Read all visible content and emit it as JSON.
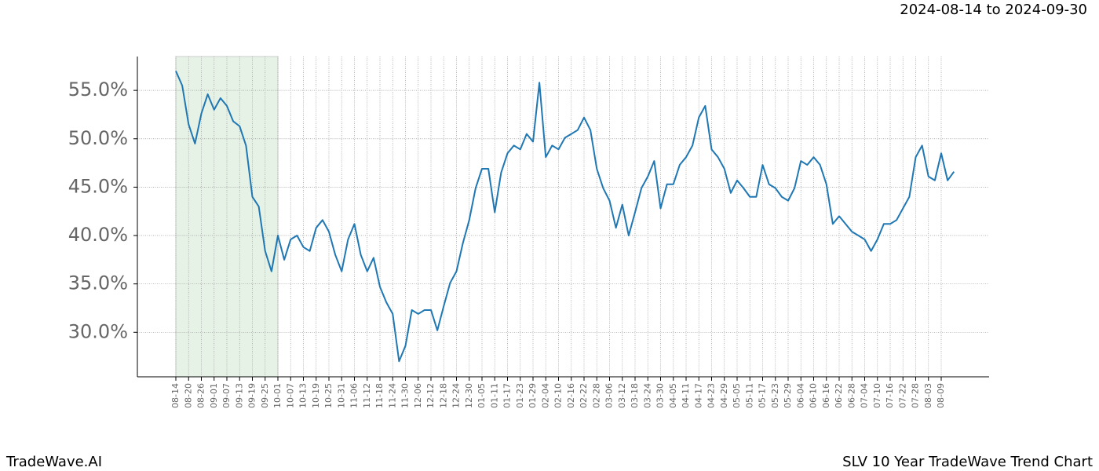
{
  "chart_data": {
    "type": "line",
    "title": "2024-08-14 to 2024-09-30",
    "footer_left": "TradeWave.AI",
    "footer_right": "SLV 10 Year TradeWave Trend Chart",
    "categories": [
      "08-14",
      null,
      "08-20",
      null,
      "08-26",
      null,
      "09-01",
      null,
      "09-07",
      null,
      "09-13",
      null,
      "09-19",
      null,
      "09-25",
      null,
      "10-01",
      null,
      "10-07",
      null,
      "10-13",
      null,
      "10-19",
      null,
      "10-25",
      null,
      "10-31",
      null,
      "11-06",
      null,
      "11-12",
      null,
      "11-18",
      null,
      "11-24",
      null,
      "11-30",
      null,
      "12-06",
      null,
      "12-12",
      null,
      "12-18",
      null,
      "12-24",
      null,
      "12-30",
      null,
      "01-05",
      null,
      "01-11",
      null,
      "01-17",
      null,
      "01-23",
      null,
      "01-29",
      null,
      "02-04",
      null,
      "02-10",
      null,
      "02-16",
      null,
      "02-22",
      null,
      "02-28",
      null,
      "03-06",
      null,
      "03-12",
      null,
      "03-18",
      null,
      "03-24",
      null,
      "03-30",
      null,
      "04-05",
      null,
      "04-11",
      null,
      "04-17",
      null,
      "04-23",
      null,
      "04-29",
      null,
      "05-05",
      null,
      "05-11",
      null,
      "05-17",
      null,
      "05-23",
      null,
      "05-29",
      null,
      "06-04",
      null,
      "06-10",
      null,
      "06-16",
      null,
      "06-22",
      null,
      "06-28",
      null,
      "07-04",
      null,
      "07-10",
      null,
      "07-16",
      null,
      "07-22",
      null,
      "07-28",
      null,
      "08-03",
      null,
      "08-09",
      null,
      null
    ],
    "values": [
      57.0,
      55.5,
      51.5,
      49.5,
      52.6,
      54.6,
      53.0,
      54.2,
      53.4,
      51.8,
      51.3,
      49.3,
      44.0,
      43.0,
      38.4,
      36.3,
      40.0,
      37.5,
      39.6,
      40.0,
      38.8,
      38.4,
      40.8,
      41.6,
      40.4,
      38.0,
      36.3,
      39.6,
      41.2,
      38.0,
      36.3,
      37.7,
      34.7,
      33.1,
      31.9,
      27.0,
      28.6,
      32.3,
      31.9,
      32.3,
      32.3,
      30.2,
      32.7,
      35.1,
      36.3,
      39.2,
      41.6,
      44.9,
      46.9,
      46.9,
      42.4,
      46.5,
      48.5,
      49.3,
      48.9,
      50.5,
      49.7,
      55.8,
      48.1,
      49.3,
      48.9,
      50.1,
      50.5,
      50.9,
      52.2,
      50.9,
      46.9,
      44.9,
      43.6,
      40.8,
      43.2,
      40.0,
      42.4,
      44.9,
      46.1,
      47.7,
      42.8,
      45.3,
      45.3,
      47.3,
      48.1,
      49.3,
      52.2,
      53.4,
      48.9,
      48.1,
      46.9,
      44.4,
      45.7,
      44.9,
      44.0,
      44.0,
      47.3,
      45.3,
      44.9,
      44.0,
      43.6,
      44.9,
      47.7,
      47.3,
      48.1,
      47.3,
      45.3,
      41.2,
      42.0,
      41.2,
      40.4,
      40.0,
      39.6,
      38.4,
      39.6,
      41.2,
      41.2,
      41.6,
      42.8,
      44.0,
      48.1,
      49.3,
      46.1,
      45.7,
      48.5,
      45.7,
      46.6
    ],
    "color": "#1f77b4",
    "highlight": {
      "start": "08-14",
      "end": "10-01",
      "color": "#e6f2e6"
    },
    "ylim": [
      25.4,
      58.5
    ],
    "yticks": [
      {
        "value": 30,
        "label": "30.0%"
      },
      {
        "value": 35,
        "label": "35.0%"
      },
      {
        "value": 40,
        "label": "40.0%"
      },
      {
        "value": 45,
        "label": "45.0%"
      },
      {
        "value": 50,
        "label": "50.0%"
      },
      {
        "value": 55,
        "label": "55.0%"
      }
    ],
    "grid": true
  }
}
